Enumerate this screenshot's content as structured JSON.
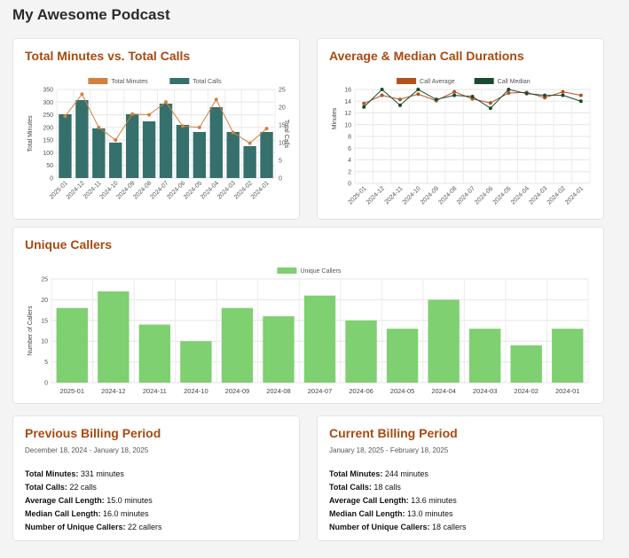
{
  "page": {
    "title": "My Awesome Podcast"
  },
  "colors": {
    "accent": "#a84a12",
    "minutes_line": "#d2813f",
    "calls_bar": "#35706c",
    "avg_line": "#b0521c",
    "median_line": "#1b4a30",
    "callers_bar": "#7ed070"
  },
  "chart_data": [
    {
      "id": "minutes_vs_calls",
      "type": "bar",
      "title": "Total Minutes vs. Total Calls",
      "categories": [
        "2025-01",
        "2024-12",
        "2024-11",
        "2024-10",
        "2024-09",
        "2024-08",
        "2024-07",
        "2024-06",
        "2024-05",
        "2024-04",
        "2024-03",
        "2024-02",
        "2024-01"
      ],
      "series": [
        {
          "name": "Total Minutes",
          "kind": "line",
          "axis": "left",
          "values": [
            244,
            331,
            200,
            150,
            253,
            250,
            300,
            205,
            200,
            310,
            180,
            138,
            195
          ]
        },
        {
          "name": "Total Calls",
          "kind": "bar",
          "axis": "right",
          "values": [
            18,
            22,
            14,
            10,
            18,
            16,
            21,
            15,
            13,
            20,
            13,
            9,
            13
          ]
        }
      ],
      "ylabel": "Total Minutes",
      "y2label": "Total Calls",
      "ylim": [
        0,
        350
      ],
      "y2lim": [
        0,
        25
      ],
      "yticks": [
        "0",
        "50",
        "100",
        "150",
        "200",
        "250",
        "300",
        "350"
      ],
      "y2ticks": [
        "0",
        "5",
        "10",
        "15",
        "20",
        "25"
      ]
    },
    {
      "id": "avg_median",
      "type": "line",
      "title": "Average & Median Call Durations",
      "categories": [
        "2025-01",
        "2024-12",
        "2024-11",
        "2024-10",
        "2024-09",
        "2024-08",
        "2024-07",
        "2024-06",
        "2024-05",
        "2024-04",
        "2024-03",
        "2024-02",
        "2024-01"
      ],
      "series": [
        {
          "name": "Call Average",
          "values": [
            13.6,
            15.0,
            14.3,
            15.2,
            14.1,
            15.6,
            14.4,
            13.7,
            15.4,
            15.5,
            14.6,
            15.6,
            15.0
          ]
        },
        {
          "name": "Call Median",
          "values": [
            13.0,
            16.0,
            13.3,
            16.0,
            14.3,
            15.0,
            14.8,
            12.8,
            16.0,
            15.3,
            15.0,
            15.0,
            14.0
          ]
        }
      ],
      "ylabel": "Minutes",
      "ylim": [
        0,
        16
      ],
      "yticks": [
        "0",
        "2",
        "4",
        "6",
        "8",
        "10",
        "12",
        "14",
        "16"
      ]
    },
    {
      "id": "unique_callers",
      "type": "bar",
      "title": "Unique Callers",
      "categories": [
        "2025-01",
        "2024-12",
        "2024-11",
        "2024-10",
        "2024-09",
        "2024-08",
        "2024-07",
        "2024-06",
        "2024-05",
        "2024-04",
        "2024-03",
        "2024-02",
        "2024-01"
      ],
      "series": [
        {
          "name": "Unique Callers",
          "values": [
            18,
            22,
            14,
            10,
            18,
            16,
            21,
            15,
            13,
            20,
            13,
            9,
            13
          ]
        }
      ],
      "ylabel": "Number of Callers",
      "ylim": [
        0,
        25
      ],
      "yticks": [
        "0",
        "5",
        "10",
        "15",
        "20",
        "25"
      ]
    }
  ],
  "billing": {
    "previous": {
      "title": "Previous Billing Period",
      "dates": "December 18, 2024 - January 18, 2025",
      "stats": [
        {
          "label": "Total Minutes:",
          "value": "331 minutes"
        },
        {
          "label": "Total Calls:",
          "value": "22 calls"
        },
        {
          "label": "Average Call Length:",
          "value": "15.0 minutes"
        },
        {
          "label": "Median Call Length:",
          "value": "16.0 minutes"
        },
        {
          "label": "Number of Unique Callers:",
          "value": "22 callers"
        }
      ]
    },
    "current": {
      "title": "Current Billing Period",
      "dates": "January 18, 2025 - February 18, 2025",
      "stats": [
        {
          "label": "Total Minutes:",
          "value": "244 minutes"
        },
        {
          "label": "Total Calls:",
          "value": "18 calls"
        },
        {
          "label": "Average Call Length:",
          "value": "13.6 minutes"
        },
        {
          "label": "Median Call Length:",
          "value": "13.0 minutes"
        },
        {
          "label": "Number of Unique Callers:",
          "value": "18 callers"
        }
      ]
    }
  }
}
